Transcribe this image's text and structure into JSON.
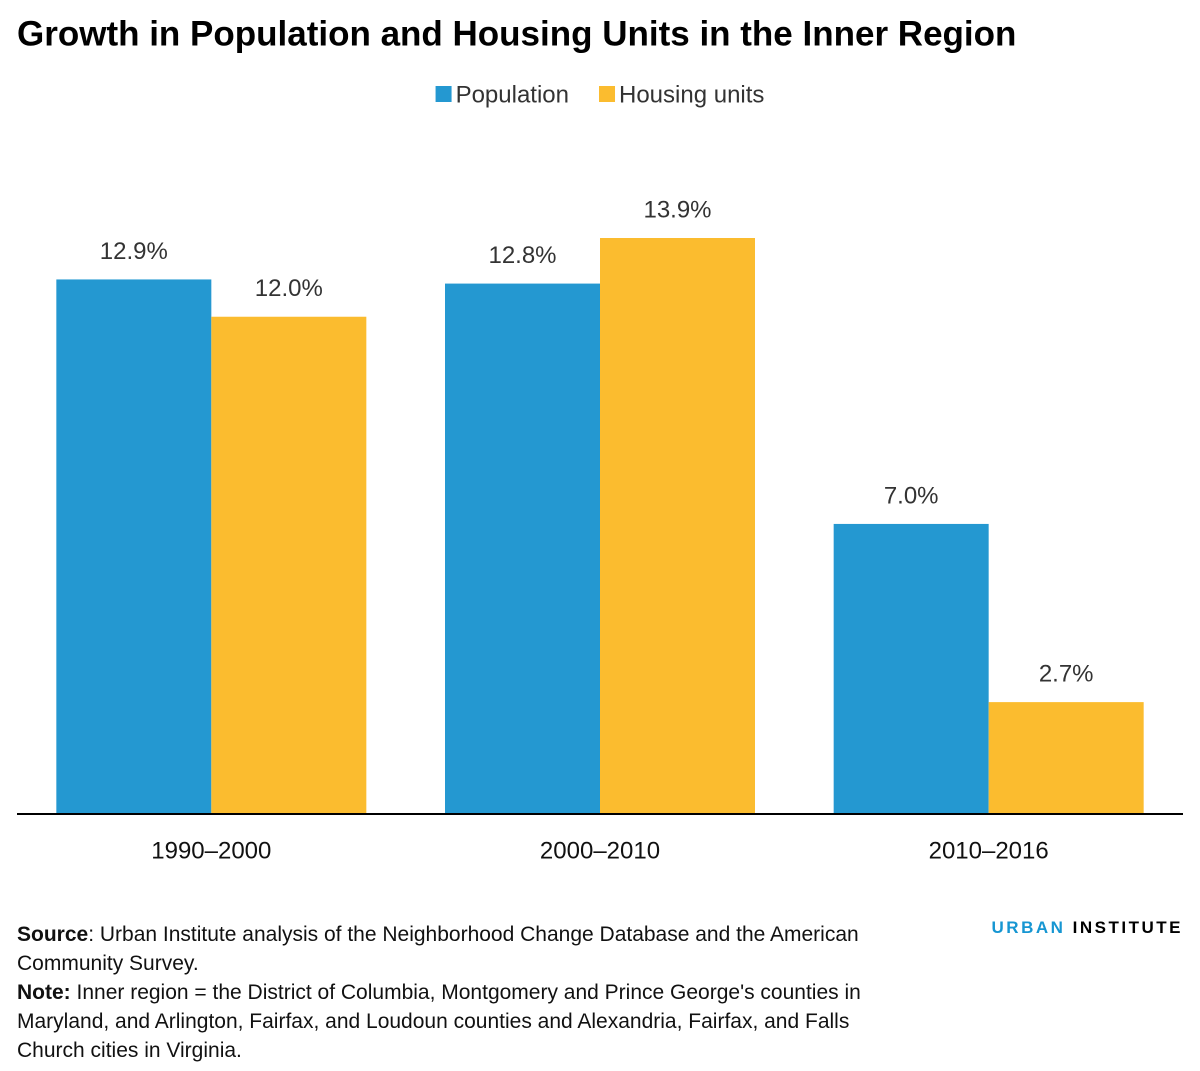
{
  "chart_data": {
    "type": "bar",
    "title": "Growth in Population and Housing Units in the Inner Region",
    "categories": [
      "1990–2000",
      "2000–2010",
      "2010–2016"
    ],
    "series": [
      {
        "name": "Population",
        "color": "#2498d1",
        "values": [
          12.9,
          12.8,
          7.0
        ],
        "value_labels": [
          "12.9%",
          "12.8%",
          "7.0%"
        ]
      },
      {
        "name": "Housing units",
        "color": "#fbbc2f",
        "values": [
          12.0,
          13.9,
          2.7
        ],
        "value_labels": [
          "12.0%",
          "13.9%",
          "2.7%"
        ]
      }
    ],
    "legend": "top",
    "grid": false,
    "source": {
      "label": "Source",
      "text": ": Urban Institute analysis of the Neighborhood Change Database and the American Community Survey."
    },
    "note": {
      "label": "Note:",
      "text": " Inner region = the District of Columbia, Montgomery and Prince George's counties in Maryland, and Arlington, Fairfax, and Loudoun counties and Alexandria, Fairfax, and Falls Church cities in Virginia."
    },
    "logo": {
      "part1": "URBAN",
      "part2": "INSTITUTE"
    }
  }
}
